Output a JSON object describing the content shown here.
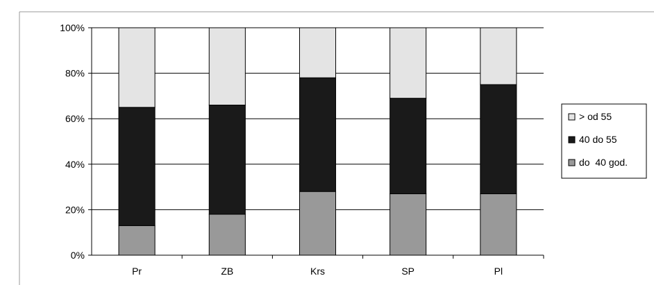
{
  "chart_data": {
    "type": "bar",
    "stacked": true,
    "percent": true,
    "categories": [
      "Pr",
      "ZB",
      "Krs",
      "SP",
      "Pl"
    ],
    "series": [
      {
        "name": "do  40 god.",
        "color": "#999999",
        "values": [
          13,
          18,
          28,
          27,
          27
        ]
      },
      {
        "name": "40 do 55",
        "color": "#1a1a1a",
        "values": [
          52,
          48,
          50,
          42,
          48
        ]
      },
      {
        "name": "> od 55",
        "color": "#e4e4e4",
        "values": [
          35,
          34,
          22,
          31,
          25
        ]
      }
    ],
    "legend_order": [
      "> od 55",
      "40 do 55",
      "do  40 god."
    ],
    "ylim": [
      0,
      100
    ],
    "yticks": [
      "0%",
      "20%",
      "40%",
      "60%",
      "80%",
      "100%"
    ],
    "grid": true,
    "legend_position": "right",
    "title": "",
    "xlabel": "",
    "ylabel": ""
  }
}
